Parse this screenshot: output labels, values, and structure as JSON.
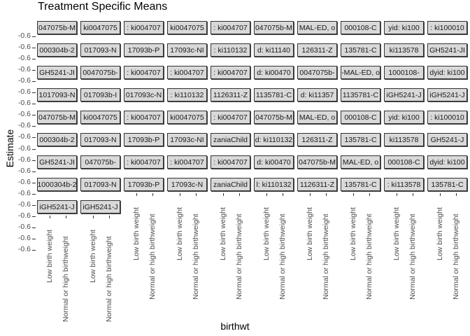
{
  "chart_data": {
    "type": "bar",
    "title": "Treatment Specific Means",
    "xlabel": "birthwt",
    "ylabel": "Estimate",
    "categories": [
      "Low birth weight",
      "Normal or high birthweight"
    ],
    "y_tick_labels": [
      "-0.6",
      "-0.6",
      "-0.6",
      "-0.6",
      "-0.6",
      "-0.6",
      "-0.6",
      "-0.6",
      "-0.6",
      "-0.6",
      "-0.6",
      "-0.6",
      "-0.6",
      "-0.6",
      "-0.6",
      "-0.6",
      "-0.6",
      "-0.6",
      "-0.6",
      "-0.6"
    ],
    "values_visible": false,
    "facet_columns": [
      {
        "strips": [
          "047075b-M",
          "000304b-2",
          "GH5241-JI",
          "1017093-N",
          "047075b-M",
          "000304b-2",
          "GH5241-JI",
          "1000304b-2",
          "iGH5241-J"
        ],
        "ticks": [
          "Low birth weight",
          "Normal or high birthweight"
        ]
      },
      {
        "strips": [
          "ki0047075",
          "017093-N",
          "0047075b-",
          "017093b-I",
          "ki0047075",
          "017093-N",
          "047075b-",
          "017093-N",
          "iGH5241-J"
        ],
        "ticks": [
          "Low birth weight",
          "Normal or high birthweight"
        ]
      },
      {
        "strips": [
          ": ki004707",
          "17093b-P",
          ": ki004707",
          "017093c-N",
          ": ki004707",
          "17093b-P",
          ": ki004707",
          "17093b-P"
        ],
        "ticks": [
          "Low birth weight",
          "Normal or high birthweight"
        ]
      },
      {
        "strips": [
          "ki0047075",
          "17093c-NI",
          ": ki004707",
          ": ki110132",
          "ki0047075",
          "17093c-NI",
          ": ki004707",
          "17093c-N"
        ],
        "ticks": [
          "Low birth weight",
          "Normal or high birthweight"
        ]
      },
      {
        "strips": [
          ": ki004707",
          ": ki110132",
          ": ki004707",
          "1126311-Z",
          ": ki004707",
          "zaniaChild",
          ": ki004707",
          "zaniaChild"
        ],
        "ticks": [
          "Low birth weight",
          "Normal or high birthweight"
        ]
      },
      {
        "strips": [
          "047075b-M",
          "d: ki11140",
          "d: ki00470",
          "1135781-C",
          "047075b-M",
          "d: ki110132",
          "d: ki00470",
          "l: ki110132"
        ],
        "ticks": [
          "Low birth weight",
          "Normal or high birthweight"
        ]
      },
      {
        "strips": [
          "MAL-ED, o",
          "126311-Z",
          "0047075b-",
          "d: ki11357",
          "MAL-ED, o",
          "126311-Z",
          "047075b-M",
          "1126311-Z"
        ],
        "ticks": [
          "Low birth weight",
          "Normal or high birthweight"
        ]
      },
      {
        "strips": [
          "000108-C",
          "135781-C",
          "-MAL-ED, o",
          "1135781-C",
          "000108-C",
          "135781-C",
          "MAL-ED, o",
          "135781-C"
        ],
        "ticks": [
          "Low birth weight",
          "Normal or high birthweight"
        ]
      },
      {
        "strips": [
          "yid: ki100",
          "ki113578",
          "1000108-",
          "iGH5241-J",
          "yid: ki100",
          "ki113578",
          "000108-C",
          ": ki113578"
        ],
        "ticks": [
          "Low birth weight",
          "Normal or high birthweight"
        ]
      },
      {
        "strips": [
          ": ki100010",
          "GH5241-JI",
          "dyid: ki100",
          "iGH5241-J",
          ": ki100010",
          "GH5241-J",
          "dyid: ki100",
          "135781-C"
        ],
        "ticks": [
          "Low birth weight",
          "Normal or high birthweight"
        ]
      }
    ]
  }
}
